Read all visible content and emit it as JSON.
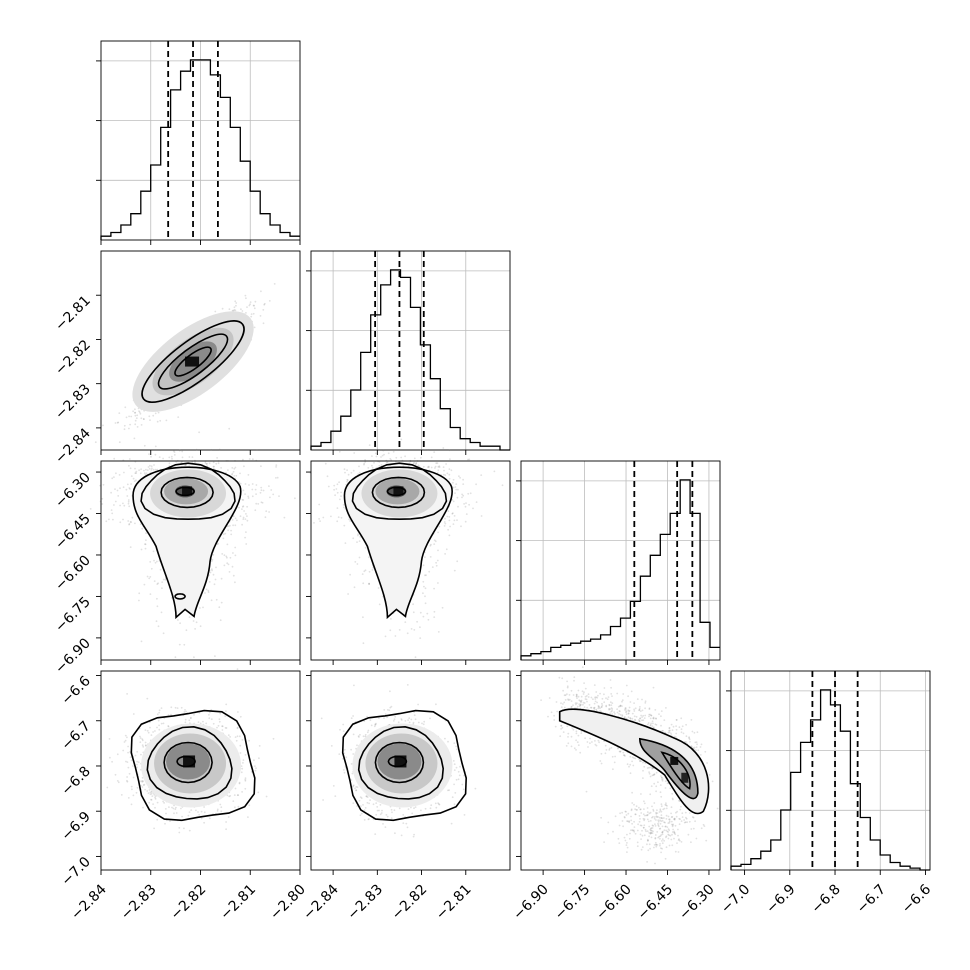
{
  "chart_data": {
    "type": "corner",
    "grid": true,
    "quantile_lines": "dashed",
    "parameters": [
      {
        "index": 0,
        "range": [
          -2.84,
          -2.8
        ],
        "ticks": [
          -2.84,
          -2.83,
          -2.82,
          -2.81,
          -2.8
        ],
        "tick_labels": [
          "−2.84",
          "−2.83",
          "−2.82",
          "−2.81",
          "−2.80"
        ],
        "mean": -2.8215,
        "sd": 0.0052,
        "quantiles": [
          -2.8265,
          -2.8215,
          -2.8165
        ]
      },
      {
        "index": 1,
        "range": [
          -2.845,
          -2.8
        ],
        "ticks": [
          -2.84,
          -2.83,
          -2.82,
          -2.81
        ],
        "tick_labels": [
          "−2.84",
          "−2.83",
          "−2.82",
          "−2.81"
        ],
        "mean": -2.825,
        "sd": 0.0055,
        "quantiles": [
          -2.8305,
          -2.825,
          -2.8195
        ]
      },
      {
        "index": 2,
        "range": [
          -6.98,
          -6.26
        ],
        "ticks": [
          -6.9,
          -6.75,
          -6.6,
          -6.45,
          -6.3
        ],
        "tick_labels": [
          "−6.90",
          "−6.75",
          "−6.60",
          "−6.45",
          "−6.30"
        ],
        "quantiles": [
          -6.57,
          -6.415,
          -6.36
        ]
      },
      {
        "index": 3,
        "range": [
          -7.03,
          -6.59
        ],
        "ticks": [
          -7.0,
          -6.9,
          -6.8,
          -6.7,
          -6.6
        ],
        "tick_labels": [
          "−7.0",
          "−6.9",
          "−6.8",
          "−6.7",
          "−6.6"
        ],
        "mean": -6.8,
        "sd": 0.05,
        "quantiles": [
          -6.85,
          -6.8,
          -6.75
        ]
      }
    ],
    "histograms": [
      {
        "param": 0,
        "bin_start": -2.84,
        "bin_width": 0.002,
        "counts": [
          1,
          2,
          4,
          7,
          13,
          20,
          30,
          40,
          45,
          48,
          48,
          44,
          38,
          30,
          21,
          13,
          7,
          4,
          2,
          1
        ]
      },
      {
        "param": 1,
        "bin_start": -2.845,
        "bin_width": 0.00225,
        "counts": [
          1,
          2,
          5,
          9,
          16,
          26,
          36,
          44,
          48,
          46,
          38,
          28,
          19,
          11,
          6,
          3,
          2,
          1,
          1,
          0
        ]
      },
      {
        "param": 2,
        "bin_start": -6.98,
        "bin_width": 0.036,
        "counts": [
          1,
          1.5,
          2,
          3,
          3.5,
          4,
          4.5,
          5,
          6,
          8,
          10,
          14,
          20,
          25,
          30,
          35,
          43,
          35,
          9,
          3
        ]
      },
      {
        "param": 3,
        "bin_start": -7.03,
        "bin_width": 0.022,
        "counts": [
          1,
          1.5,
          3,
          5,
          8,
          16,
          26,
          34,
          40,
          48,
          44,
          37,
          23,
          14,
          8,
          4,
          2,
          1,
          0.5,
          0
        ]
      }
    ],
    "pairs": [
      {
        "x": 0,
        "y": 1,
        "correlation": 0.9
      },
      {
        "x": 0,
        "y": 2,
        "mode": [
          -2.8225,
          -6.37
        ]
      },
      {
        "x": 1,
        "y": 2,
        "mode": [
          -2.825,
          -6.37
        ]
      },
      {
        "x": 0,
        "y": 3,
        "mode": [
          -2.8225,
          -6.79
        ]
      },
      {
        "x": 1,
        "y": 3,
        "mode": [
          -2.825,
          -6.79
        ]
      },
      {
        "x": 2,
        "y": 3,
        "trend": "negative",
        "mode": [
          -6.4,
          -6.81
        ]
      }
    ]
  }
}
